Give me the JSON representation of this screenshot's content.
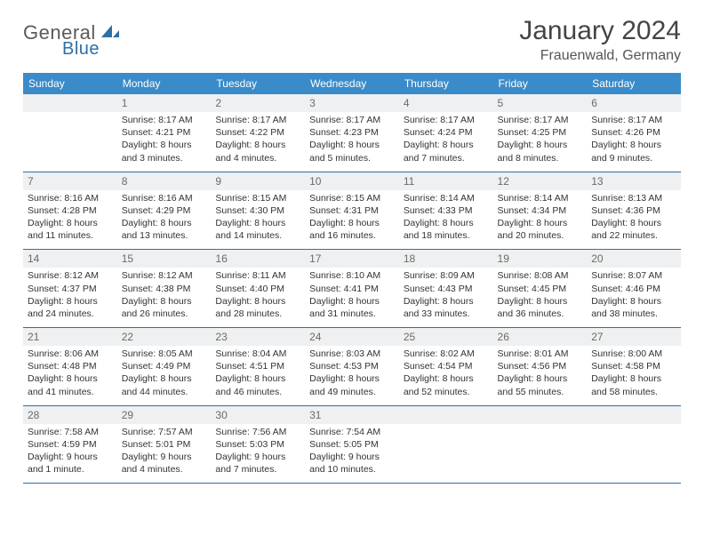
{
  "logo": {
    "word1": "General",
    "word2": "Blue"
  },
  "title": "January 2024",
  "location": "Frauenwald, Germany",
  "colors": {
    "header_bg": "#3a8bc9",
    "header_text": "#ffffff",
    "daynum_bg": "#eef0f1",
    "daynum_text": "#6b6b6b",
    "separator": "#2f6fa7",
    "body_text": "#333333",
    "logo_gray": "#5a5a5a",
    "logo_blue": "#2f6fa7"
  },
  "layout": {
    "header_fontsize": 12,
    "daynum_fontsize": 12,
    "cell_fontsize": 10.5,
    "title_fontsize": 30,
    "location_fontsize": 16
  },
  "day_names": [
    "Sunday",
    "Monday",
    "Tuesday",
    "Wednesday",
    "Thursday",
    "Friday",
    "Saturday"
  ],
  "weeks": [
    {
      "nums": [
        "",
        "1",
        "2",
        "3",
        "4",
        "5",
        "6"
      ],
      "cells": [
        "",
        "Sunrise: 8:17 AM\nSunset: 4:21 PM\nDaylight: 8 hours and 3 minutes.",
        "Sunrise: 8:17 AM\nSunset: 4:22 PM\nDaylight: 8 hours and 4 minutes.",
        "Sunrise: 8:17 AM\nSunset: 4:23 PM\nDaylight: 8 hours and 5 minutes.",
        "Sunrise: 8:17 AM\nSunset: 4:24 PM\nDaylight: 8 hours and 7 minutes.",
        "Sunrise: 8:17 AM\nSunset: 4:25 PM\nDaylight: 8 hours and 8 minutes.",
        "Sunrise: 8:17 AM\nSunset: 4:26 PM\nDaylight: 8 hours and 9 minutes."
      ]
    },
    {
      "nums": [
        "7",
        "8",
        "9",
        "10",
        "11",
        "12",
        "13"
      ],
      "cells": [
        "Sunrise: 8:16 AM\nSunset: 4:28 PM\nDaylight: 8 hours and 11 minutes.",
        "Sunrise: 8:16 AM\nSunset: 4:29 PM\nDaylight: 8 hours and 13 minutes.",
        "Sunrise: 8:15 AM\nSunset: 4:30 PM\nDaylight: 8 hours and 14 minutes.",
        "Sunrise: 8:15 AM\nSunset: 4:31 PM\nDaylight: 8 hours and 16 minutes.",
        "Sunrise: 8:14 AM\nSunset: 4:33 PM\nDaylight: 8 hours and 18 minutes.",
        "Sunrise: 8:14 AM\nSunset: 4:34 PM\nDaylight: 8 hours and 20 minutes.",
        "Sunrise: 8:13 AM\nSunset: 4:36 PM\nDaylight: 8 hours and 22 minutes."
      ]
    },
    {
      "nums": [
        "14",
        "15",
        "16",
        "17",
        "18",
        "19",
        "20"
      ],
      "cells": [
        "Sunrise: 8:12 AM\nSunset: 4:37 PM\nDaylight: 8 hours and 24 minutes.",
        "Sunrise: 8:12 AM\nSunset: 4:38 PM\nDaylight: 8 hours and 26 minutes.",
        "Sunrise: 8:11 AM\nSunset: 4:40 PM\nDaylight: 8 hours and 28 minutes.",
        "Sunrise: 8:10 AM\nSunset: 4:41 PM\nDaylight: 8 hours and 31 minutes.",
        "Sunrise: 8:09 AM\nSunset: 4:43 PM\nDaylight: 8 hours and 33 minutes.",
        "Sunrise: 8:08 AM\nSunset: 4:45 PM\nDaylight: 8 hours and 36 minutes.",
        "Sunrise: 8:07 AM\nSunset: 4:46 PM\nDaylight: 8 hours and 38 minutes."
      ]
    },
    {
      "nums": [
        "21",
        "22",
        "23",
        "24",
        "25",
        "26",
        "27"
      ],
      "cells": [
        "Sunrise: 8:06 AM\nSunset: 4:48 PM\nDaylight: 8 hours and 41 minutes.",
        "Sunrise: 8:05 AM\nSunset: 4:49 PM\nDaylight: 8 hours and 44 minutes.",
        "Sunrise: 8:04 AM\nSunset: 4:51 PM\nDaylight: 8 hours and 46 minutes.",
        "Sunrise: 8:03 AM\nSunset: 4:53 PM\nDaylight: 8 hours and 49 minutes.",
        "Sunrise: 8:02 AM\nSunset: 4:54 PM\nDaylight: 8 hours and 52 minutes.",
        "Sunrise: 8:01 AM\nSunset: 4:56 PM\nDaylight: 8 hours and 55 minutes.",
        "Sunrise: 8:00 AM\nSunset: 4:58 PM\nDaylight: 8 hours and 58 minutes."
      ]
    },
    {
      "nums": [
        "28",
        "29",
        "30",
        "31",
        "",
        "",
        ""
      ],
      "cells": [
        "Sunrise: 7:58 AM\nSunset: 4:59 PM\nDaylight: 9 hours and 1 minute.",
        "Sunrise: 7:57 AM\nSunset: 5:01 PM\nDaylight: 9 hours and 4 minutes.",
        "Sunrise: 7:56 AM\nSunset: 5:03 PM\nDaylight: 9 hours and 7 minutes.",
        "Sunrise: 7:54 AM\nSunset: 5:05 PM\nDaylight: 9 hours and 10 minutes.",
        "",
        "",
        ""
      ]
    }
  ]
}
